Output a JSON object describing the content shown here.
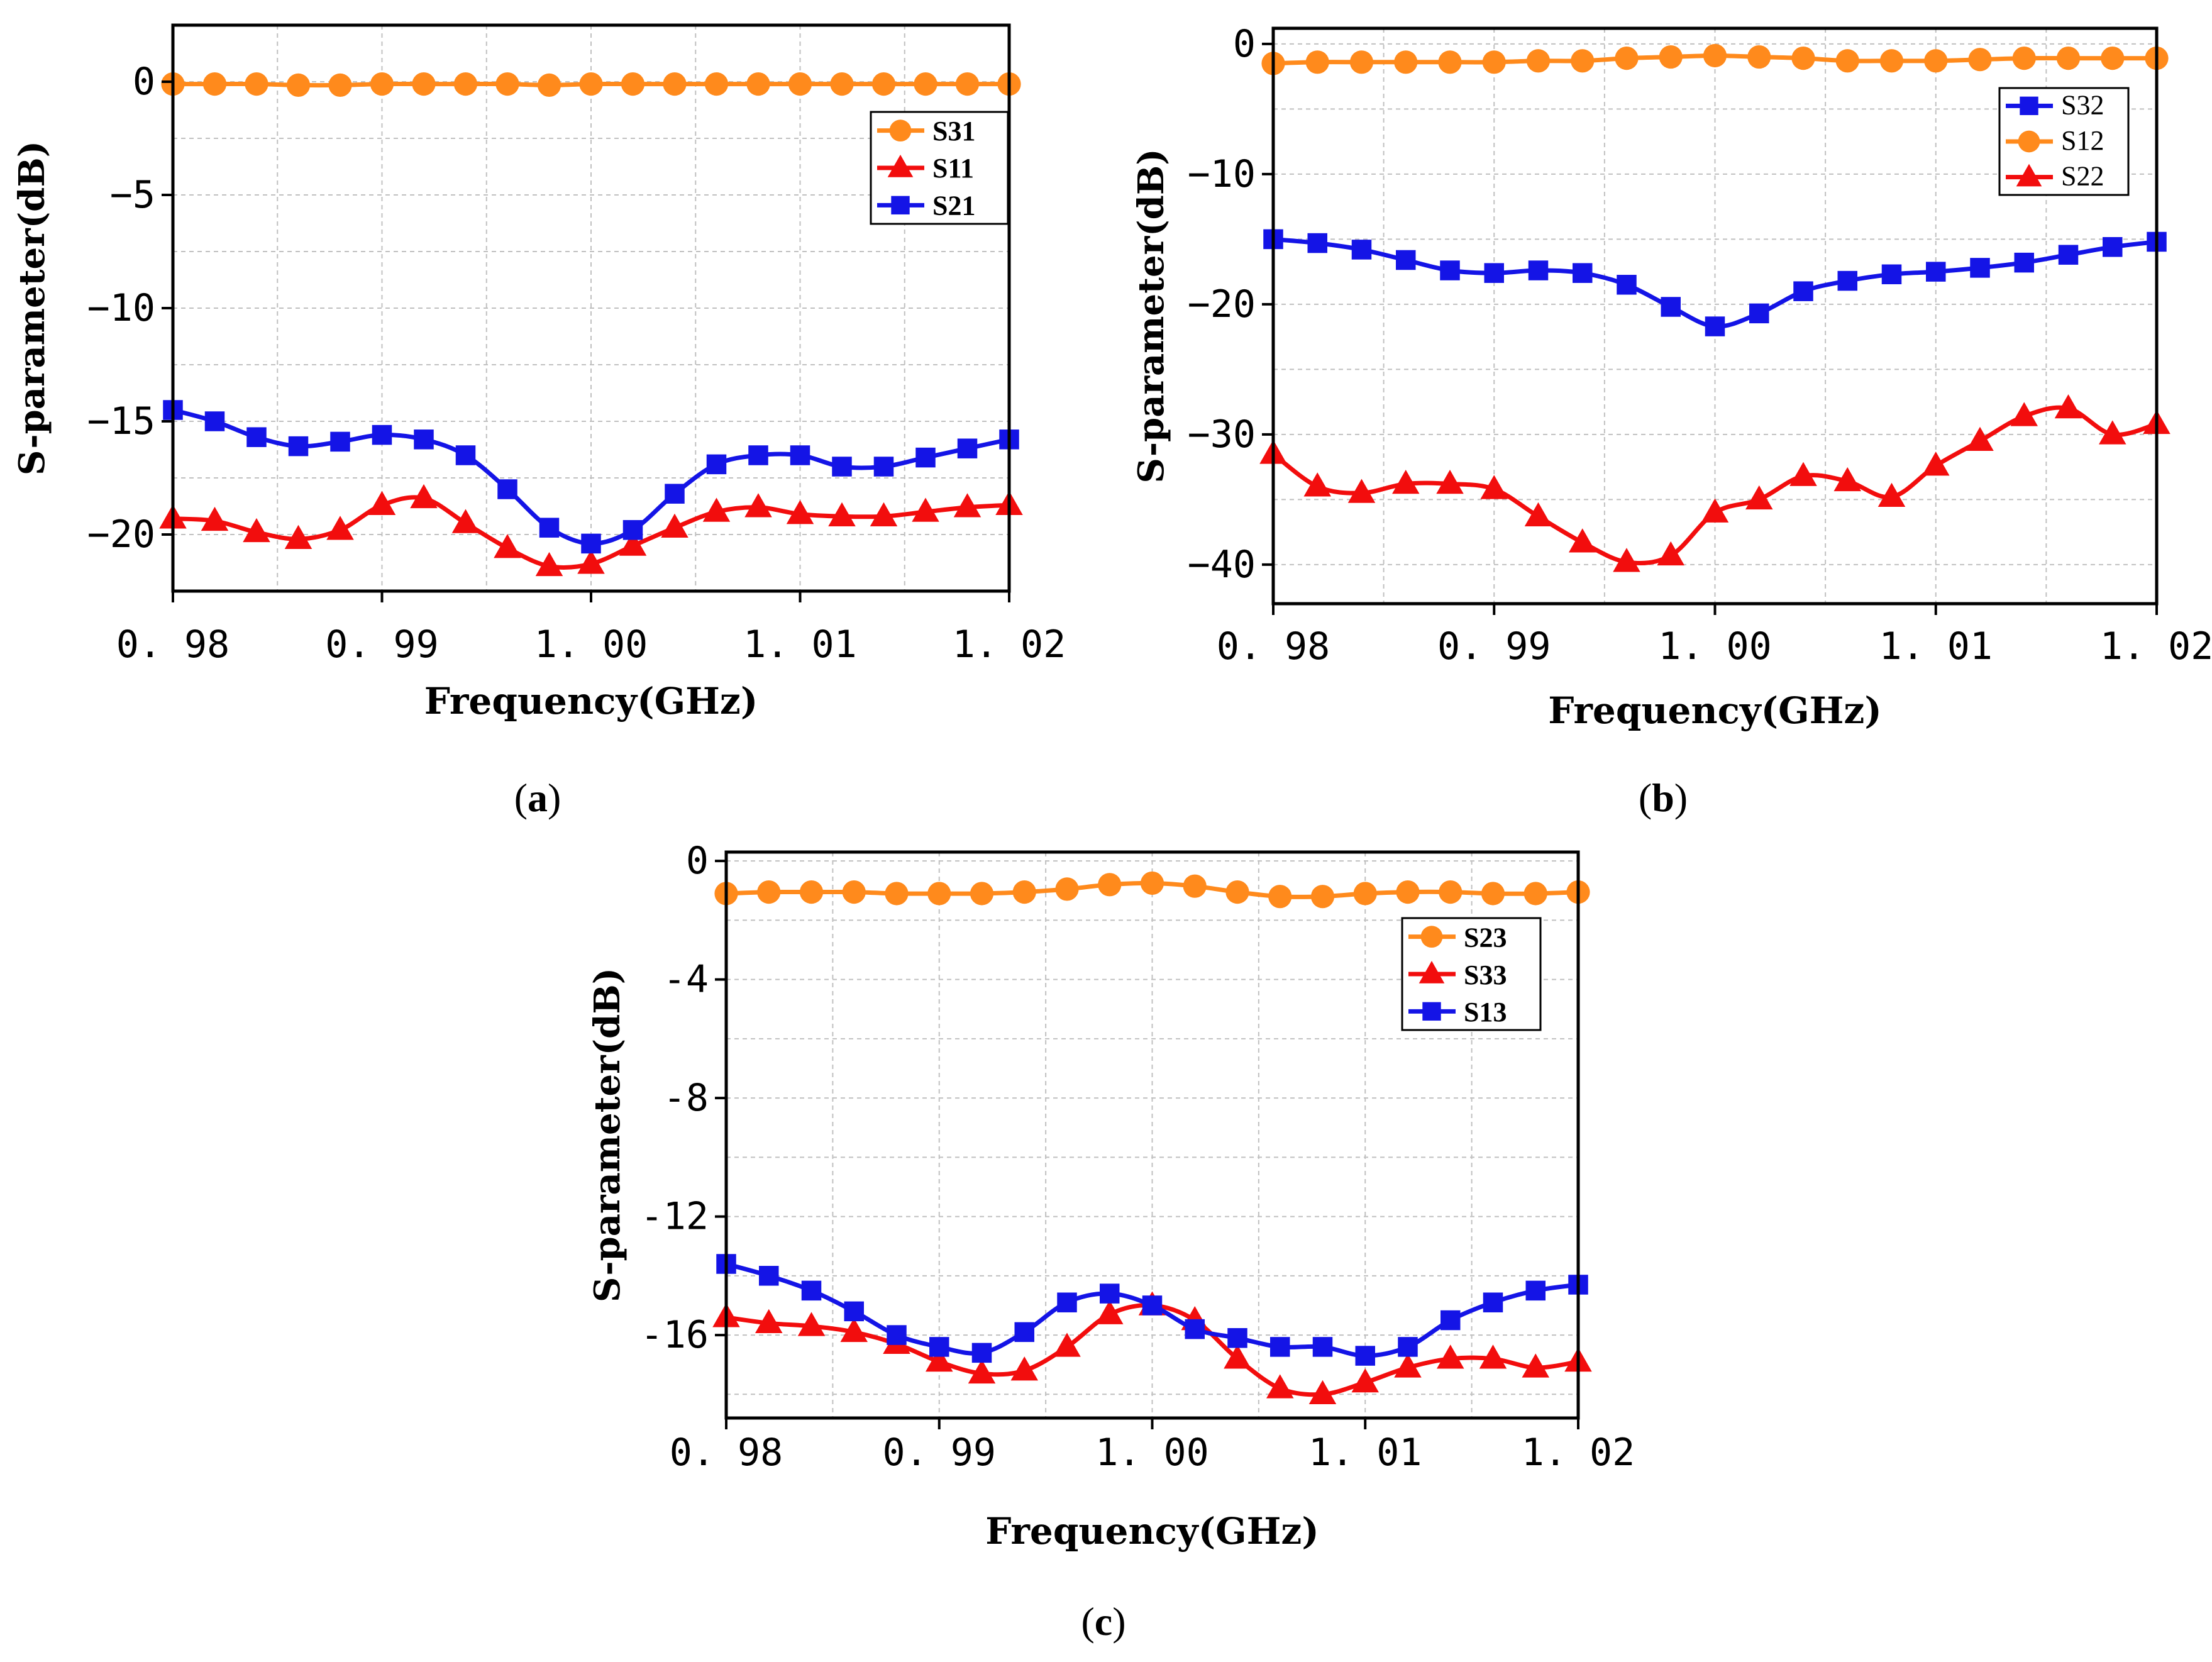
{
  "colors": {
    "orange": "#ff8a1c",
    "red": "#f20d0d",
    "blue": "#1414e6",
    "grid": "#c0c0c0"
  },
  "chart_data": [
    {
      "type": "line",
      "panel": "a",
      "caption": {
        "open": "(",
        "letter": "a",
        "close": ")"
      },
      "xlabel": "Frequency(GHz)",
      "ylabel": "S-parameter(dB)",
      "xlim": [
        0.98,
        1.02
      ],
      "ylim": [
        -22.5,
        2.5
      ],
      "xticks": [
        0.98,
        0.99,
        1.0,
        1.01,
        1.02
      ],
      "xtick_labels": [
        "0. 98",
        "0. 99",
        "1. 00",
        "1. 01",
        "1. 02"
      ],
      "yticks": [
        0,
        -5,
        -10,
        -15,
        -20
      ],
      "ytick_labels": [
        "0",
        "−5",
        "−10",
        "−15",
        "−20"
      ],
      "legend_position": "upper-right",
      "x": [
        0.98,
        0.982,
        0.984,
        0.986,
        0.988,
        0.99,
        0.992,
        0.994,
        0.996,
        0.998,
        1.0,
        1.002,
        1.004,
        1.006,
        1.008,
        1.01,
        1.012,
        1.014,
        1.016,
        1.018,
        1.02
      ],
      "series": [
        {
          "name": "S31",
          "color": "orange",
          "marker": "circle",
          "values": [
            -0.1,
            -0.1,
            -0.1,
            -0.15,
            -0.15,
            -0.1,
            -0.1,
            -0.1,
            -0.1,
            -0.15,
            -0.1,
            -0.1,
            -0.1,
            -0.1,
            -0.1,
            -0.1,
            -0.1,
            -0.1,
            -0.1,
            -0.1,
            -0.1
          ]
        },
        {
          "name": "S11",
          "color": "red",
          "marker": "triangle",
          "values": [
            -19.3,
            -19.4,
            -19.9,
            -20.2,
            -19.8,
            -18.7,
            -18.4,
            -19.5,
            -20.6,
            -21.4,
            -21.3,
            -20.5,
            -19.7,
            -19.0,
            -18.8,
            -19.1,
            -19.2,
            -19.2,
            -19.0,
            -18.8,
            -18.7
          ]
        },
        {
          "name": "S21",
          "color": "blue",
          "marker": "square",
          "values": [
            -14.5,
            -15.0,
            -15.7,
            -16.1,
            -15.9,
            -15.6,
            -15.8,
            -16.5,
            -18.0,
            -19.7,
            -20.4,
            -19.8,
            -18.2,
            -16.9,
            -16.5,
            -16.5,
            -17.0,
            -17.0,
            -16.6,
            -16.2,
            -15.8
          ]
        }
      ]
    },
    {
      "type": "line",
      "panel": "b",
      "caption": {
        "open": "(",
        "letter": "b",
        "close": ")"
      },
      "xlabel": "Frequency(GHz)",
      "ylabel": "S-parameter(dB)",
      "xlim": [
        0.98,
        1.02
      ],
      "ylim": [
        -43,
        1.2
      ],
      "xticks": [
        0.98,
        0.99,
        1.0,
        1.01,
        1.02
      ],
      "xtick_labels": [
        "0. 98",
        "0. 99",
        "1. 00",
        "1. 01",
        "1. 02"
      ],
      "yticks": [
        0,
        -10,
        -20,
        -30,
        -40
      ],
      "ytick_labels": [
        "0",
        "−10",
        "−20",
        "−30",
        "−40"
      ],
      "legend_position": "upper-right",
      "x": [
        0.98,
        0.982,
        0.984,
        0.986,
        0.988,
        0.99,
        0.992,
        0.994,
        0.996,
        0.998,
        1.0,
        1.002,
        1.004,
        1.006,
        1.008,
        1.01,
        1.012,
        1.014,
        1.016,
        1.018,
        1.02
      ],
      "series": [
        {
          "name": "S32",
          "color": "blue",
          "marker": "square",
          "values": [
            -15.0,
            -15.3,
            -15.8,
            -16.6,
            -17.4,
            -17.6,
            -17.4,
            -17.6,
            -18.5,
            -20.2,
            -21.7,
            -20.7,
            -19.0,
            -18.2,
            -17.7,
            -17.5,
            -17.2,
            -16.8,
            -16.2,
            -15.6,
            -15.2
          ]
        },
        {
          "name": "S12",
          "color": "orange",
          "marker": "circle",
          "values": [
            -1.5,
            -1.4,
            -1.4,
            -1.4,
            -1.4,
            -1.4,
            -1.3,
            -1.3,
            -1.1,
            -1.0,
            -0.9,
            -1.0,
            -1.1,
            -1.3,
            -1.3,
            -1.3,
            -1.2,
            -1.1,
            -1.1,
            -1.1,
            -1.1
          ]
        },
        {
          "name": "S22",
          "color": "red",
          "marker": "triangle",
          "values": [
            -31.5,
            -34.0,
            -34.5,
            -33.8,
            -33.8,
            -34.2,
            -36.3,
            -38.3,
            -39.8,
            -39.3,
            -36.0,
            -35.0,
            -33.2,
            -33.6,
            -34.8,
            -32.4,
            -30.5,
            -28.6,
            -28.0,
            -30.0,
            -29.2
          ]
        }
      ]
    },
    {
      "type": "line",
      "panel": "c",
      "caption": {
        "open": "(",
        "letter": "c",
        "close": ")"
      },
      "xlabel": "Frequency(GHz)",
      "ylabel": "S-parameter(dB)",
      "xlim": [
        0.98,
        1.02
      ],
      "ylim": [
        -18.8,
        0.3
      ],
      "xticks": [
        0.98,
        0.99,
        1.0,
        1.01,
        1.02
      ],
      "xtick_labels": [
        "0. 98",
        "0. 99",
        "1. 00",
        "1. 01",
        "1. 02"
      ],
      "yticks": [
        0,
        -4,
        -8,
        -12,
        -16
      ],
      "ytick_labels": [
        "0",
        "-4",
        "-8",
        "-12",
        "-16"
      ],
      "legend_position": "upper-right",
      "x": [
        0.98,
        0.982,
        0.984,
        0.986,
        0.988,
        0.99,
        0.992,
        0.994,
        0.996,
        0.998,
        1.0,
        1.002,
        1.004,
        1.006,
        1.008,
        1.01,
        1.012,
        1.014,
        1.016,
        1.018,
        1.02
      ],
      "series": [
        {
          "name": "S23",
          "color": "orange",
          "marker": "circle",
          "values": [
            -1.1,
            -1.05,
            -1.05,
            -1.05,
            -1.1,
            -1.1,
            -1.1,
            -1.05,
            -0.95,
            -0.8,
            -0.75,
            -0.85,
            -1.05,
            -1.2,
            -1.2,
            -1.1,
            -1.05,
            -1.05,
            -1.1,
            -1.1,
            -1.05
          ]
        },
        {
          "name": "S33",
          "color": "red",
          "marker": "triangle",
          "values": [
            -15.4,
            -15.6,
            -15.7,
            -15.9,
            -16.3,
            -16.9,
            -17.3,
            -17.2,
            -16.4,
            -15.3,
            -15.0,
            -15.5,
            -16.8,
            -17.8,
            -18.0,
            -17.6,
            -17.1,
            -16.8,
            -16.8,
            -17.1,
            -16.9
          ]
        },
        {
          "name": "S13",
          "color": "blue",
          "marker": "square",
          "values": [
            -13.6,
            -14.0,
            -14.5,
            -15.2,
            -16.0,
            -16.4,
            -16.6,
            -15.9,
            -14.9,
            -14.6,
            -15.0,
            -15.8,
            -16.1,
            -16.4,
            -16.4,
            -16.7,
            -16.4,
            -15.5,
            -14.9,
            -14.5,
            -14.3
          ]
        }
      ]
    }
  ]
}
